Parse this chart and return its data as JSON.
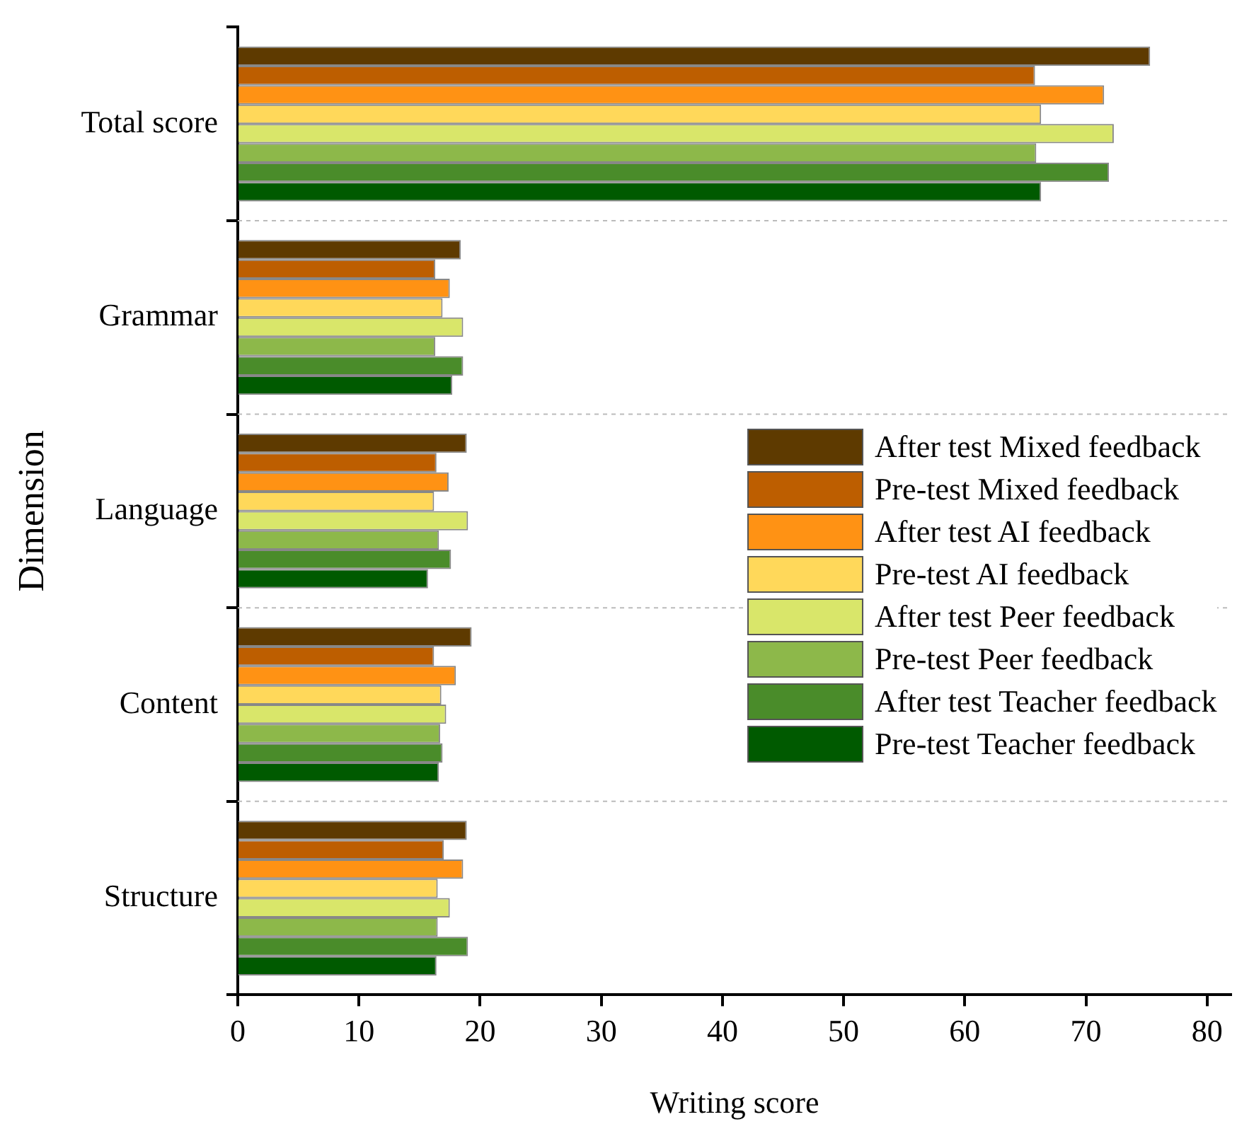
{
  "chart_data": {
    "type": "bar",
    "orientation": "horizontal",
    "xlabel": "Writing score",
    "ylabel": "Dimension",
    "categories": [
      "Total score",
      "Grammar",
      "Language",
      "Content",
      "Structure"
    ],
    "series": [
      {
        "name": "After test Mixed feedback",
        "color": "#5e3a00",
        "values": [
          75.3,
          18.4,
          18.9,
          19.3,
          18.9
        ]
      },
      {
        "name": "Pre-test Mixed feedback",
        "color": "#bd5e00",
        "values": [
          65.8,
          16.3,
          16.4,
          16.2,
          17.0
        ]
      },
      {
        "name": "After test AI feedback",
        "color": "#ff9214",
        "values": [
          71.5,
          17.5,
          17.4,
          18.0,
          18.6
        ]
      },
      {
        "name": "Pre-test AI feedback",
        "color": "#ffd85a",
        "values": [
          66.3,
          16.9,
          16.2,
          16.8,
          16.5
        ]
      },
      {
        "name": "After test Peer feedback",
        "color": "#d9e66a",
        "values": [
          72.3,
          18.6,
          19.0,
          17.2,
          17.5
        ]
      },
      {
        "name": "Pre-test Peer feedback",
        "color": "#8db84a",
        "values": [
          65.9,
          16.3,
          16.6,
          16.7,
          16.5
        ]
      },
      {
        "name": "After test Teacher feedback",
        "color": "#4a8c2a",
        "values": [
          71.9,
          18.6,
          17.6,
          16.9,
          19.0
        ]
      },
      {
        "name": "Pre-test Teacher feedback",
        "color": "#005a00",
        "values": [
          66.3,
          17.7,
          15.7,
          16.6,
          16.4
        ]
      }
    ],
    "xlim": [
      0,
      82
    ],
    "xticks": [
      0,
      10,
      20,
      30,
      40,
      50,
      60,
      70,
      80
    ],
    "grid": "y",
    "legend": "right"
  }
}
